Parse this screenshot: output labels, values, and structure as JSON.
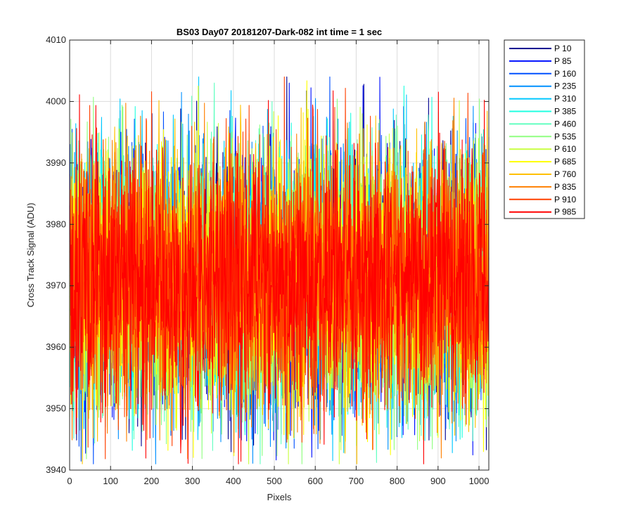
{
  "chart_data": {
    "type": "line",
    "title": "BS03 Day07 20181207-Dark-082 int time = 1 sec",
    "xlabel": "Pixels",
    "ylabel": "Cross Track Signal (ADU)",
    "xlim": [
      0,
      1024
    ],
    "ylim": [
      3940,
      4010
    ],
    "xticks": [
      0,
      100,
      200,
      300,
      400,
      500,
      600,
      700,
      800,
      900,
      1000
    ],
    "yticks": [
      3940,
      3950,
      3960,
      3970,
      3980,
      3990,
      4000,
      4010
    ],
    "grid": true,
    "legend_position": "outside-top-right",
    "noise_model": {
      "mean": 3971,
      "typical_range": [
        3954,
        3990
      ],
      "extreme_range": [
        3941,
        4004
      ],
      "points_per_series": 1024
    },
    "series": [
      {
        "name": "P 10",
        "color": "#000090"
      },
      {
        "name": "P 85",
        "color": "#0010ff"
      },
      {
        "name": "P 160",
        "color": "#0050ff"
      },
      {
        "name": "P 235",
        "color": "#0090ff"
      },
      {
        "name": "P 310",
        "color": "#00c8ff"
      },
      {
        "name": "P 385",
        "color": "#20ffe0"
      },
      {
        "name": "P 460",
        "color": "#60ffc0"
      },
      {
        "name": "P 535",
        "color": "#90ff80"
      },
      {
        "name": "P 610",
        "color": "#c8ff40"
      },
      {
        "name": "P 685",
        "color": "#ffff00"
      },
      {
        "name": "P 760",
        "color": "#ffc000"
      },
      {
        "name": "P 835",
        "color": "#ff8000"
      },
      {
        "name": "P 910",
        "color": "#ff4000"
      },
      {
        "name": "P 985",
        "color": "#ff0000"
      }
    ]
  }
}
